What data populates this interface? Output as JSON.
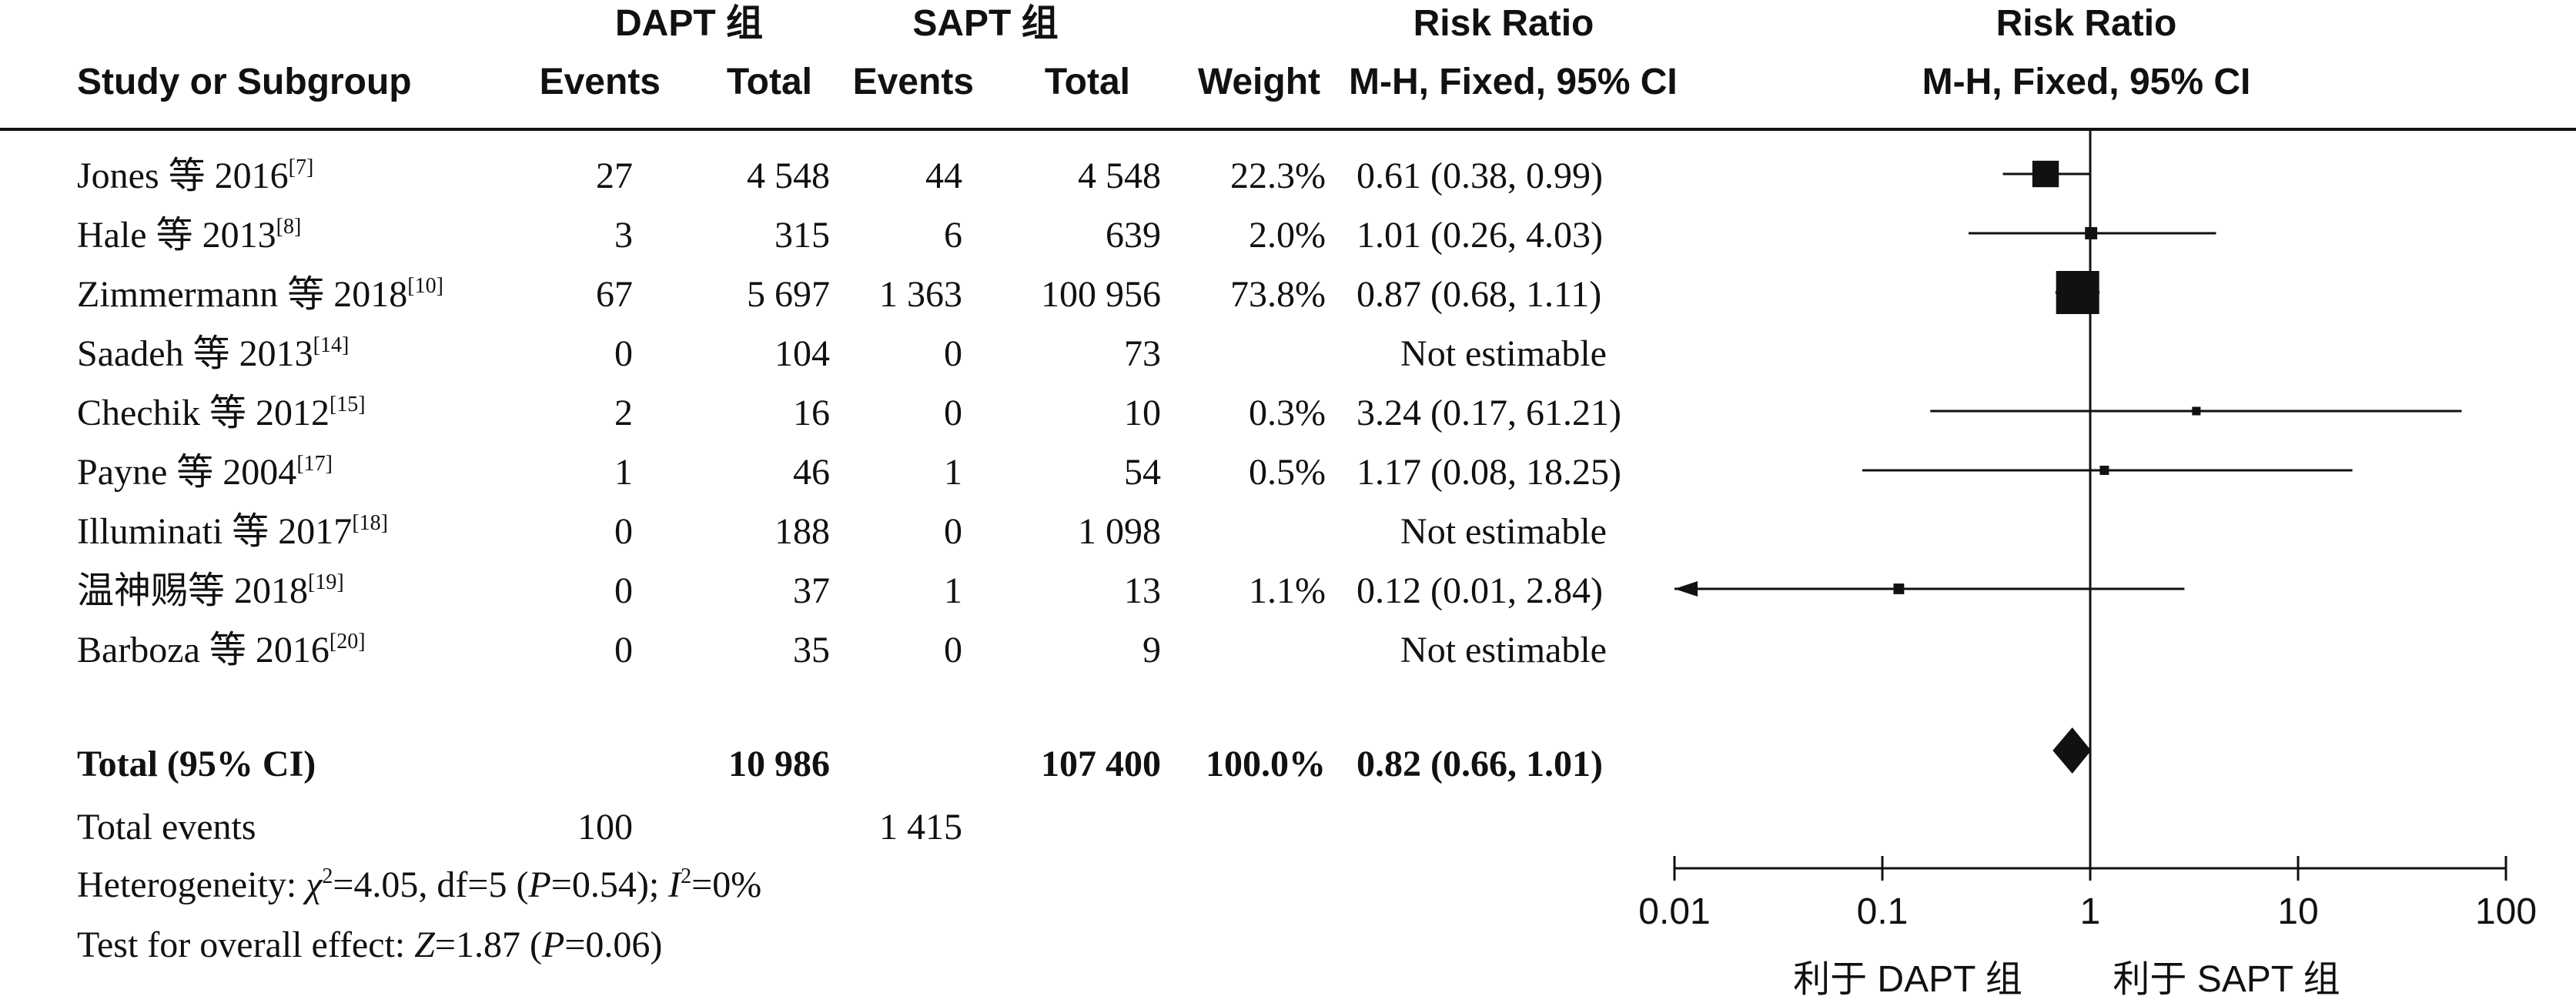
{
  "headers": {
    "group1": "DAPT 组",
    "group2": "SAPT 组",
    "rr_title": "Risk Ratio",
    "rr_title_plot": "Risk Ratio",
    "study": "Study or Subgroup",
    "events1": "Events",
    "total1": "Total",
    "events2": "Events",
    "total2": "Total",
    "weight": "Weight",
    "method": "M-H, Fixed, 95% CI",
    "method_plot": "M-H, Fixed, 95% CI"
  },
  "totals": {
    "label": "Total (95% CI)",
    "total1": "10 986",
    "total2": "107 400",
    "weight": "100.0%",
    "rr": "0.82 (0.66, 1.01)",
    "events_label": "Total events",
    "events1": "100",
    "events2": "1 415"
  },
  "stats": {
    "het_prefix": "Heterogeneity: ",
    "chi": "χ",
    "chi_sup": "2",
    "het_mid": "=4.05, df=5 (",
    "p1": "P",
    "het_p": "=0.54); ",
    "i": "I",
    "i_sup": "2",
    "het_end": "=0%",
    "test_prefix": "Test for overall effect: ",
    "z": "Z",
    "test_mid": "=1.87 (",
    "p2": "P",
    "test_end": "=0.06)"
  },
  "chart_data": {
    "type": "forest",
    "scale": "log",
    "xlim": [
      0.01,
      100
    ],
    "ticks": [
      0.01,
      0.1,
      1,
      10,
      100
    ],
    "tick_labels": [
      "0.01",
      "0.1",
      "1",
      "10",
      "100"
    ],
    "favours_left": "利于 DAPT 组",
    "favours_right": "利于 SAPT 组",
    "studies": [
      {
        "name": "Jones 等 2016",
        "ref": "[7]",
        "events1": "27",
        "total1": "4 548",
        "events2": "44",
        "total2": "4 548",
        "weight": "22.3%",
        "rr_text": "0.61 (0.38, 0.99)",
        "rr": 0.61,
        "lo": 0.38,
        "hi": 0.99,
        "w": 22.3
      },
      {
        "name": "Hale 等 2013",
        "ref": "[8]",
        "events1": "3",
        "total1": "315",
        "events2": "6",
        "total2": "639",
        "weight": "2.0%",
        "rr_text": "1.01 (0.26, 4.03)",
        "rr": 1.01,
        "lo": 0.26,
        "hi": 4.03,
        "w": 2.0
      },
      {
        "name": "Zimmermann 等 2018",
        "ref": "[10]",
        "events1": "67",
        "total1": "5 697",
        "events2": "1 363",
        "total2": "100 956",
        "weight": "73.8%",
        "rr_text": "0.87 (0.68, 1.11)",
        "rr": 0.87,
        "lo": 0.68,
        "hi": 1.11,
        "w": 73.8
      },
      {
        "name": "Saadeh 等 2013",
        "ref": "[14]",
        "events1": "0",
        "total1": "104",
        "events2": "0",
        "total2": "73",
        "weight": "",
        "rr_text": "Not estimable",
        "rr": null,
        "lo": null,
        "hi": null,
        "w": 0
      },
      {
        "name": "Chechik 等 2012",
        "ref": "[15]",
        "events1": "2",
        "total1": "16",
        "events2": "0",
        "total2": "10",
        "weight": "0.3%",
        "rr_text": "3.24 (0.17, 61.21)",
        "rr": 3.24,
        "lo": 0.17,
        "hi": 61.21,
        "w": 0.3
      },
      {
        "name": "Payne 等 2004",
        "ref": "[17]",
        "events1": "1",
        "total1": "46",
        "events2": "1",
        "total2": "54",
        "weight": "0.5%",
        "rr_text": "1.17 (0.08, 18.25)",
        "rr": 1.17,
        "lo": 0.08,
        "hi": 18.25,
        "w": 0.5
      },
      {
        "name": "Illuminati 等 2017",
        "ref": "[18]",
        "events1": "0",
        "total1": "188",
        "events2": "0",
        "total2": "1 098",
        "weight": "",
        "rr_text": "Not estimable",
        "rr": null,
        "lo": null,
        "hi": null,
        "w": 0
      },
      {
        "name": "温神赐等 2018",
        "ref": "[19]",
        "events1": "0",
        "total1": "37",
        "events2": "1",
        "total2": "13",
        "weight": "1.1%",
        "rr_text": "0.12 (0.01, 2.84)",
        "rr": 0.12,
        "lo": 0.01,
        "hi": 2.84,
        "w": 1.1
      },
      {
        "name": "Barboza 等 2016",
        "ref": "[20]",
        "events1": "0",
        "total1": "35",
        "events2": "0",
        "total2": "9",
        "weight": "",
        "rr_text": "Not estimable",
        "rr": null,
        "lo": null,
        "hi": null,
        "w": 0
      }
    ],
    "overall": {
      "rr": 0.82,
      "lo": 0.66,
      "hi": 1.01
    }
  }
}
